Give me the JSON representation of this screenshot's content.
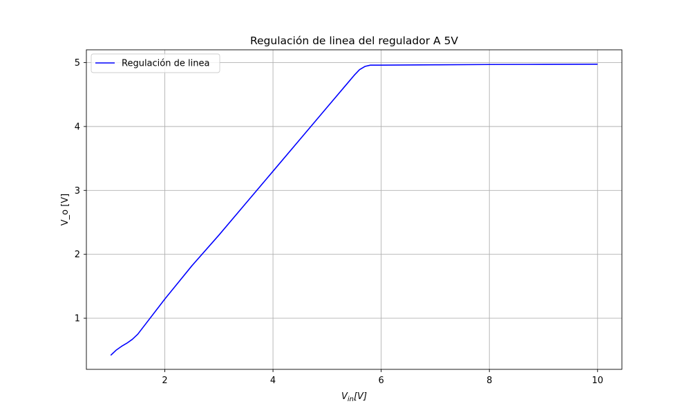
{
  "chart_data": {
    "type": "line",
    "title": "Regulación de linea del regulador A 5V",
    "xlabel": {
      "base": "V",
      "sub": "in",
      "unit": "[V]"
    },
    "ylabel": "V_o [V]",
    "xlim": [
      0.55,
      10.45
    ],
    "ylim": [
      0.2,
      5.2
    ],
    "xticks": [
      2,
      4,
      6,
      8,
      10
    ],
    "yticks": [
      1,
      2,
      3,
      4,
      5
    ],
    "grid": true,
    "legend_position": "top-left",
    "series": [
      {
        "name": "Regulación de linea",
        "color": "#0000ff",
        "x": [
          1.0,
          1.1,
          1.2,
          1.3,
          1.4,
          1.5,
          2.0,
          2.5,
          3.0,
          3.5,
          4.0,
          4.5,
          5.0,
          5.3,
          5.5,
          5.6,
          5.7,
          5.8,
          6.0,
          7.0,
          8.0,
          9.0,
          10.0
        ],
        "y": [
          0.42,
          0.5,
          0.56,
          0.61,
          0.67,
          0.75,
          1.3,
          1.82,
          2.3,
          2.8,
          3.3,
          3.8,
          4.3,
          4.6,
          4.8,
          4.89,
          4.94,
          4.96,
          4.96,
          4.965,
          4.97,
          4.972,
          4.975
        ]
      }
    ]
  }
}
